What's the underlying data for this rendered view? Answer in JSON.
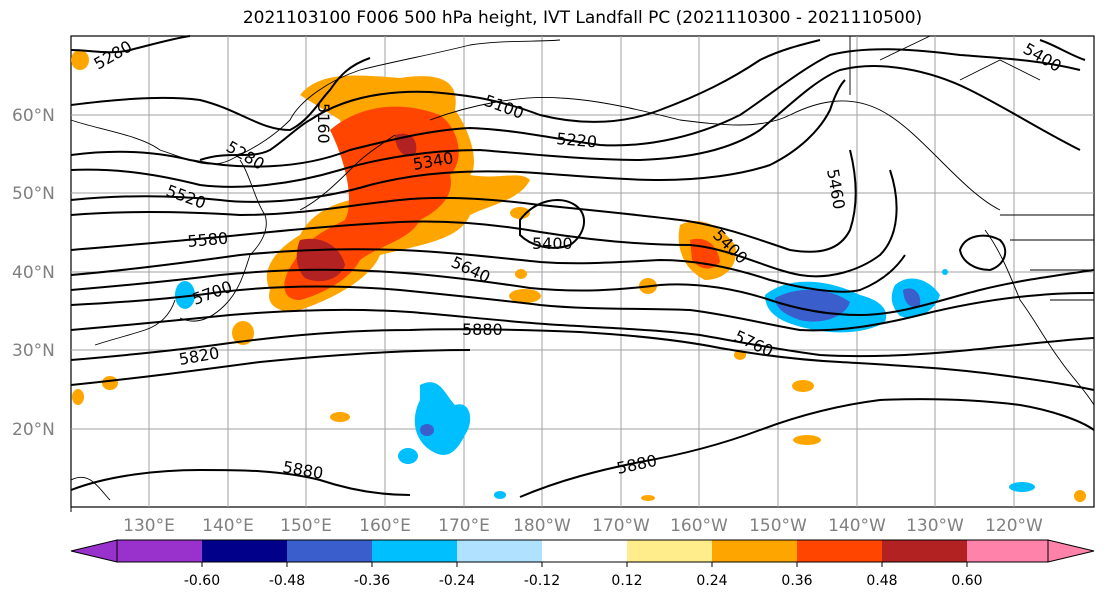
{
  "title": "2021103100 F006 500 hPa height, IVT Landfall PC (2021110300 - 2021110500)",
  "map": {
    "lat_labels": [
      "60°N",
      "50°N",
      "40°N",
      "30°N",
      "20°N"
    ],
    "lon_labels": [
      "130°E",
      "140°E",
      "150°E",
      "160°E",
      "170°E",
      "180°W",
      "170°W",
      "160°W",
      "150°W",
      "140°W",
      "130°W",
      "120°W"
    ],
    "contour_labels": [
      "5280",
      "5160",
      "5280",
      "5100",
      "5220",
      "5340",
      "5520",
      "5580",
      "5400",
      "5460",
      "5400",
      "5700",
      "5640",
      "5820",
      "5880",
      "5760",
      "5880",
      "5880",
      "5400"
    ]
  },
  "colorbar": {
    "ticks": [
      "-0.60",
      "-0.48",
      "-0.36",
      "-0.24",
      "-0.12",
      "0.12",
      "0.24",
      "0.36",
      "0.48",
      "0.60"
    ],
    "colors": [
      "#9932cc",
      "#00008b",
      "#3a5fcd",
      "#00bfff",
      "#b0e2ff",
      "#ffffff",
      "#ffec8b",
      "#ffa500",
      "#ff4500",
      "#b22222",
      "#ff82ab"
    ]
  },
  "colors": {
    "contour": "#000000",
    "grid": "#a0a0a0",
    "label": "#808080"
  }
}
